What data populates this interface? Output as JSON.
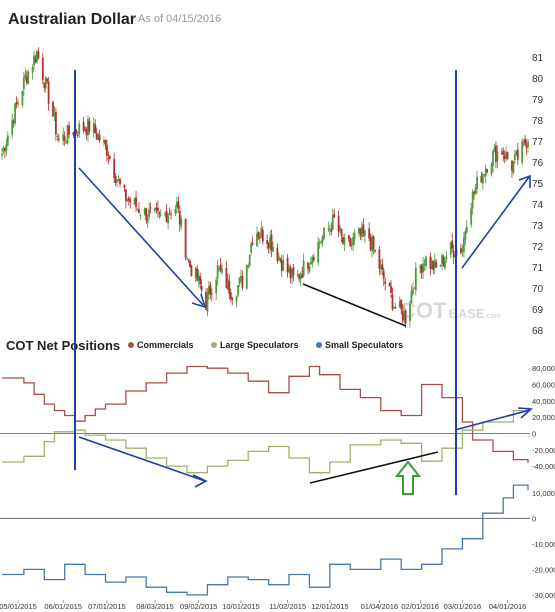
{
  "header": {
    "title": "Australian Dollar",
    "as_of": "As of 04/15/2016"
  },
  "cot_panel": {
    "title": "COT Net Positions"
  },
  "watermark": "COTBASE.com",
  "colors": {
    "candle_up": "#4e9a3c",
    "candle_down": "#b0302e",
    "commercials": "#a94f4b",
    "large_speculators": "#9fb26a",
    "small_speculators": "#4a77ae",
    "annotation_line": "#1f3fa8",
    "annotation_arrow_green": "#3a9a3a"
  },
  "chart_data": [
    {
      "type": "candlestick",
      "title": "Australian Dollar",
      "subtitle": "As of 04/15/2016",
      "y_ticks": [
        68,
        69,
        70,
        71,
        72,
        73,
        74,
        75,
        76,
        77,
        78,
        79,
        80,
        81
      ],
      "ylim": [
        67.8,
        81.8
      ],
      "x_start": "04/20/2015",
      "x_end": "04/15/2016",
      "close_path": [
        {
          "date": "04/20/2015",
          "close": 76.4
        },
        {
          "date": "04/28/2015",
          "close": 78.2
        },
        {
          "date": "05/06/2015",
          "close": 80.0
        },
        {
          "date": "05/14/2015",
          "close": 81.2
        },
        {
          "date": "05/21/2015",
          "close": 79.4
        },
        {
          "date": "05/29/2015",
          "close": 77.0
        },
        {
          "date": "06/08/2015",
          "close": 77.5
        },
        {
          "date": "06/20/2015",
          "close": 77.7
        },
        {
          "date": "07/01/2015",
          "close": 76.6
        },
        {
          "date": "07/12/2015",
          "close": 74.4
        },
        {
          "date": "07/26/2015",
          "close": 73.6
        },
        {
          "date": "08/06/2015",
          "close": 73.3
        },
        {
          "date": "08/18/2015",
          "close": 73.9
        },
        {
          "date": "08/26/2015",
          "close": 71.2
        },
        {
          "date": "09/03/2015",
          "close": 70.1
        },
        {
          "date": "09/07/2015",
          "close": 69.3
        },
        {
          "date": "09/15/2015",
          "close": 70.9
        },
        {
          "date": "09/25/2015",
          "close": 69.8
        },
        {
          "date": "10/03/2015",
          "close": 70.4
        },
        {
          "date": "10/10/2015",
          "close": 72.8
        },
        {
          "date": "10/21/2015",
          "close": 72.3
        },
        {
          "date": "10/30/2015",
          "close": 71.1
        },
        {
          "date": "11/07/2015",
          "close": 70.3
        },
        {
          "date": "11/17/2015",
          "close": 71.4
        },
        {
          "date": "11/25/2015",
          "close": 72.3
        },
        {
          "date": "12/04/2015",
          "close": 73.2
        },
        {
          "date": "12/12/2015",
          "close": 71.8
        },
        {
          "date": "12/20/2015",
          "close": 72.5
        },
        {
          "date": "12/28/2015",
          "close": 72.4
        },
        {
          "date": "01/06/2016",
          "close": 70.6
        },
        {
          "date": "01/14/2016",
          "close": 69.2
        },
        {
          "date": "01/22/2016",
          "close": 68.6
        },
        {
          "date": "01/28/2016",
          "close": 70.4
        },
        {
          "date": "02/04/2016",
          "close": 71.4
        },
        {
          "date": "02/12/2016",
          "close": 70.9
        },
        {
          "date": "02/22/2016",
          "close": 71.8
        },
        {
          "date": "03/01/2016",
          "close": 71.9
        },
        {
          "date": "03/05/2016",
          "close": 73.8
        },
        {
          "date": "03/12/2016",
          "close": 75.1
        },
        {
          "date": "03/20/2016",
          "close": 76.2
        },
        {
          "date": "03/28/2016",
          "close": 76.6
        },
        {
          "date": "04/04/2016",
          "close": 75.8
        },
        {
          "date": "04/10/2016",
          "close": 76.4
        },
        {
          "date": "04/15/2016",
          "close": 77.2
        }
      ]
    },
    {
      "type": "line",
      "title": "COT Net Positions",
      "y_ticks_upper": [
        -40000,
        -20000,
        0,
        20000,
        40000,
        60000,
        80000
      ],
      "ylim_upper": [
        -57000,
        90000
      ],
      "y_ticks_lower": [
        -30000,
        -20000,
        -10000,
        0,
        10000
      ],
      "ylim_lower": [
        -32000,
        15000
      ],
      "x_ticks": [
        "05/01/2015",
        "06/01/2015",
        "07/01/2015",
        "08/03/2015",
        "09/02/2015",
        "10/01/2015",
        "11/02/2015",
        "12/01/2015",
        "01/04/2016",
        "02/01/2016",
        "03/01/2016",
        "04/01/2016"
      ],
      "x_start": "04/20/2015",
      "x_end": "04/15/2016",
      "series": [
        {
          "name": "Commercials",
          "panel": "upper",
          "points": [
            {
              "date": "04/20/2015",
              "value": 68000
            },
            {
              "date": "05/05/2015",
              "value": 62000
            },
            {
              "date": "05/12/2015",
              "value": 48000
            },
            {
              "date": "05/19/2015",
              "value": 36000
            },
            {
              "date": "05/26/2015",
              "value": 28000
            },
            {
              "date": "06/02/2015",
              "value": 22000
            },
            {
              "date": "06/09/2015",
              "value": 15000
            },
            {
              "date": "06/16/2015",
              "value": 22000
            },
            {
              "date": "06/23/2015",
              "value": 30000
            },
            {
              "date": "06/30/2015",
              "value": 36000
            },
            {
              "date": "07/14/2015",
              "value": 52000
            },
            {
              "date": "07/28/2015",
              "value": 62000
            },
            {
              "date": "08/11/2015",
              "value": 74000
            },
            {
              "date": "08/25/2015",
              "value": 82000
            },
            {
              "date": "09/08/2015",
              "value": 80000
            },
            {
              "date": "09/22/2015",
              "value": 74000
            },
            {
              "date": "10/06/2015",
              "value": 64000
            },
            {
              "date": "10/20/2015",
              "value": 50000
            },
            {
              "date": "11/03/2015",
              "value": 70000
            },
            {
              "date": "11/17/2015",
              "value": 82000
            },
            {
              "date": "11/24/2015",
              "value": 72000
            },
            {
              "date": "12/08/2015",
              "value": 54000
            },
            {
              "date": "12/22/2015",
              "value": 44000
            },
            {
              "date": "01/05/2016",
              "value": 28000
            },
            {
              "date": "01/19/2016",
              "value": 22000
            },
            {
              "date": "02/02/2016",
              "value": 60000
            },
            {
              "date": "02/16/2016",
              "value": 44000
            },
            {
              "date": "03/01/2016",
              "value": 14000
            },
            {
              "date": "03/08/2016",
              "value": -8000
            },
            {
              "date": "03/22/2016",
              "value": -22000
            },
            {
              "date": "04/05/2016",
              "value": -32000
            },
            {
              "date": "04/15/2016",
              "value": -36000
            }
          ]
        },
        {
          "name": "Large Speculators",
          "panel": "upper",
          "points": [
            {
              "date": "04/20/2015",
              "value": -35000
            },
            {
              "date": "05/05/2015",
              "value": -28000
            },
            {
              "date": "05/19/2015",
              "value": -10000
            },
            {
              "date": "05/26/2015",
              "value": 2000
            },
            {
              "date": "06/09/2015",
              "value": 4000
            },
            {
              "date": "06/16/2015",
              "value": -2000
            },
            {
              "date": "06/30/2015",
              "value": -8000
            },
            {
              "date": "07/14/2015",
              "value": -18000
            },
            {
              "date": "07/28/2015",
              "value": -30000
            },
            {
              "date": "08/11/2015",
              "value": -40000
            },
            {
              "date": "08/25/2015",
              "value": -48000
            },
            {
              "date": "09/08/2015",
              "value": -40000
            },
            {
              "date": "09/22/2015",
              "value": -33000
            },
            {
              "date": "10/06/2015",
              "value": -22000
            },
            {
              "date": "10/20/2015",
              "value": -16000
            },
            {
              "date": "11/03/2015",
              "value": -30000
            },
            {
              "date": "11/17/2015",
              "value": -48000
            },
            {
              "date": "12/01/2015",
              "value": -35000
            },
            {
              "date": "12/15/2015",
              "value": -14000
            },
            {
              "date": "01/05/2016",
              "value": -8000
            },
            {
              "date": "01/19/2016",
              "value": -12000
            },
            {
              "date": "02/02/2016",
              "value": -34000
            },
            {
              "date": "02/16/2016",
              "value": -18000
            },
            {
              "date": "03/01/2016",
              "value": 4000
            },
            {
              "date": "03/15/2016",
              "value": 14000
            },
            {
              "date": "04/05/2016",
              "value": 28000
            },
            {
              "date": "04/15/2016",
              "value": 32000
            }
          ]
        },
        {
          "name": "Small Speculators",
          "panel": "lower",
          "points": [
            {
              "date": "04/20/2015",
              "value": -22000
            },
            {
              "date": "05/05/2015",
              "value": -20000
            },
            {
              "date": "05/19/2015",
              "value": -24000
            },
            {
              "date": "06/02/2015",
              "value": -18000
            },
            {
              "date": "06/16/2015",
              "value": -22000
            },
            {
              "date": "06/30/2015",
              "value": -25000
            },
            {
              "date": "07/14/2015",
              "value": -23000
            },
            {
              "date": "07/28/2015",
              "value": -27000
            },
            {
              "date": "08/11/2015",
              "value": -29000
            },
            {
              "date": "08/25/2015",
              "value": -30000
            },
            {
              "date": "09/08/2015",
              "value": -26000
            },
            {
              "date": "09/22/2015",
              "value": -23000
            },
            {
              "date": "10/06/2015",
              "value": -24000
            },
            {
              "date": "10/20/2015",
              "value": -26000
            },
            {
              "date": "11/03/2015",
              "value": -22000
            },
            {
              "date": "11/17/2015",
              "value": -27000
            },
            {
              "date": "12/01/2015",
              "value": -18000
            },
            {
              "date": "12/15/2015",
              "value": -20000
            },
            {
              "date": "01/05/2016",
              "value": -16000
            },
            {
              "date": "01/19/2016",
              "value": -20000
            },
            {
              "date": "02/02/2016",
              "value": -18000
            },
            {
              "date": "02/16/2016",
              "value": -12000
            },
            {
              "date": "03/01/2016",
              "value": -8000
            },
            {
              "date": "03/15/2016",
              "value": 2000
            },
            {
              "date": "03/29/2016",
              "value": 8000
            },
            {
              "date": "04/05/2016",
              "value": 13000
            },
            {
              "date": "04/15/2016",
              "value": 11000
            }
          ]
        }
      ]
    }
  ]
}
